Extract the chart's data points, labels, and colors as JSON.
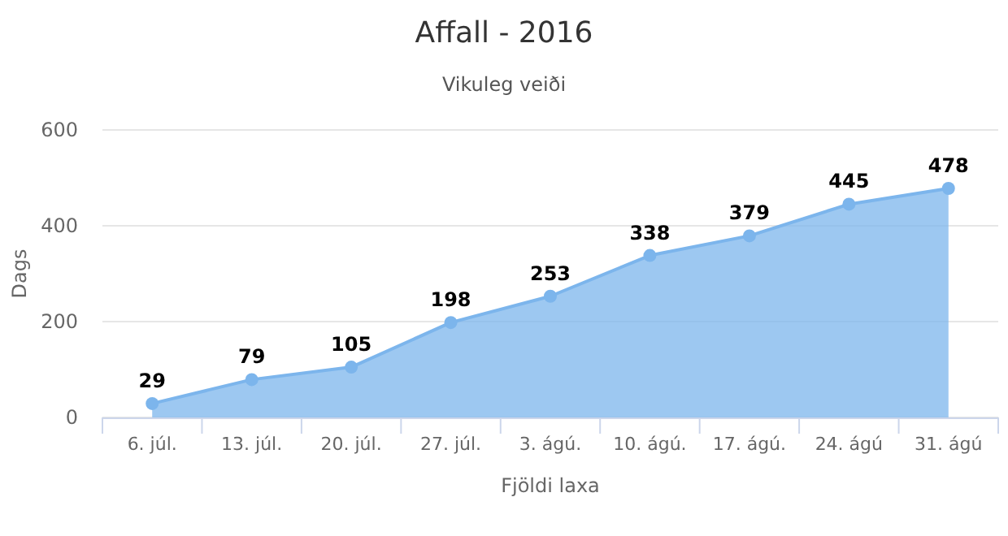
{
  "chart_data": {
    "type": "area",
    "title": "Affall - 2016",
    "subtitle": "Vikuleg veiði",
    "xlabel": "Fjöldi laxa",
    "ylabel": "Dags",
    "categories": [
      "6. júl.",
      "13. júl.",
      "20. júl.",
      "27. júl.",
      "3. ágú.",
      "10. ágú.",
      "17. ágú.",
      "24. ágú",
      "31. ágú"
    ],
    "series": [
      {
        "color": "#7cb5ec",
        "values": [
          29,
          79,
          105,
          198,
          253,
          338,
          379,
          445,
          478
        ]
      }
    ],
    "ylim": [
      0,
      600
    ],
    "yticks": [
      0,
      200,
      400,
      600
    ],
    "grid": "y",
    "marker": "circle",
    "data_labels": true
  }
}
